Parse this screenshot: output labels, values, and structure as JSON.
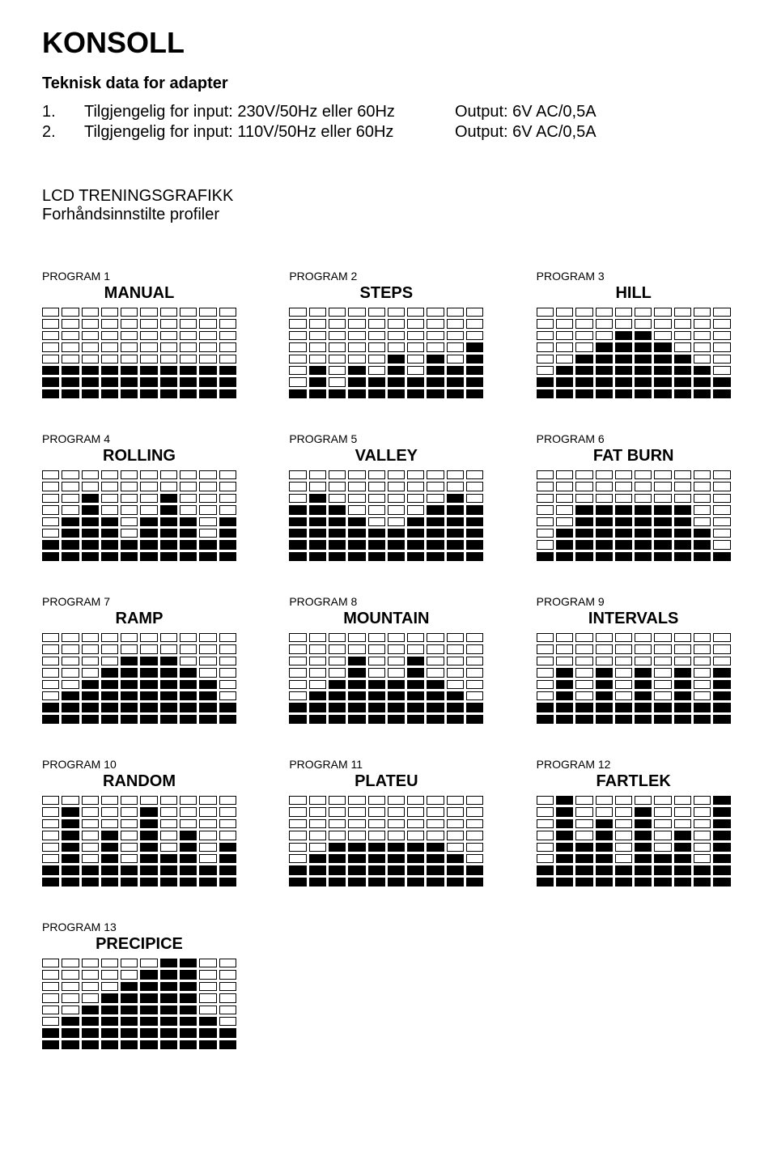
{
  "title": "KONSOLL",
  "subtitle": "Teknisk data for adapter",
  "specs": [
    {
      "num": "1.",
      "label": "Tilgjengelig for input: 230V/50Hz eller 60Hz",
      "output": "Output: 6V AC/0,5A"
    },
    {
      "num": "2.",
      "label": "Tilgjengelig for input: 110V/50Hz eller 60Hz",
      "output": "Output: 6V AC/0,5A"
    }
  ],
  "section_title": "LCD TRENINGSGRAFIKK",
  "section_sub": "Forhåndsinnstilte profiler",
  "lcd_cols": 10,
  "lcd_rows": 8,
  "seg_color_off": "#ffffff",
  "seg_color_on": "#000000",
  "seg_border": "#000000",
  "programs": [
    {
      "num": "PROGRAM 1",
      "name": "MANUAL",
      "heights": [
        3,
        3,
        3,
        3,
        3,
        3,
        3,
        3,
        3,
        3
      ]
    },
    {
      "num": "PROGRAM 2",
      "name": "STEPS",
      "heights": [
        1,
        3,
        1,
        3,
        2,
        4,
        2,
        4,
        3,
        5
      ]
    },
    {
      "num": "PROGRAM 3",
      "name": "HILL",
      "heights": [
        2,
        3,
        4,
        5,
        6,
        6,
        5,
        4,
        3,
        2
      ]
    },
    {
      "num": "PROGRAM 4",
      "name": "ROLLING",
      "heights": [
        2,
        4,
        6,
        4,
        2,
        4,
        6,
        4,
        2,
        4
      ]
    },
    {
      "num": "PROGRAM 5",
      "name": "VALLEY",
      "heights": [
        5,
        6,
        5,
        4,
        3,
        3,
        4,
        5,
        6,
        5
      ]
    },
    {
      "num": "PROGRAM 6",
      "name": "FAT BURN",
      "heights": [
        1,
        3,
        5,
        5,
        5,
        5,
        5,
        5,
        3,
        1
      ]
    },
    {
      "num": "PROGRAM 7",
      "name": "RAMP",
      "heights": [
        2,
        3,
        4,
        5,
        6,
        6,
        6,
        5,
        4,
        2
      ]
    },
    {
      "num": "PROGRAM 8",
      "name": "MOUNTAIN",
      "heights": [
        2,
        3,
        4,
        6,
        4,
        4,
        6,
        4,
        3,
        2
      ]
    },
    {
      "num": "PROGRAM 9",
      "name": "INTERVALS",
      "heights": [
        2,
        5,
        2,
        5,
        2,
        5,
        2,
        5,
        2,
        5
      ]
    },
    {
      "num": "PROGRAM 10",
      "name": "RANDOM",
      "heights": [
        2,
        7,
        2,
        5,
        2,
        7,
        3,
        5,
        2,
        4
      ]
    },
    {
      "num": "PROGRAM 11",
      "name": "PLATEU",
      "heights": [
        2,
        3,
        4,
        4,
        4,
        4,
        4,
        4,
        3,
        2
      ]
    },
    {
      "num": "PROGRAM 12",
      "name": "FARTLEK",
      "heights": [
        2,
        8,
        4,
        6,
        2,
        7,
        3,
        5,
        2,
        8
      ]
    },
    {
      "num": "PROGRAM 13",
      "name": "PRECIPICE",
      "heights": [
        2,
        3,
        4,
        5,
        6,
        7,
        8,
        8,
        3,
        2
      ]
    }
  ]
}
